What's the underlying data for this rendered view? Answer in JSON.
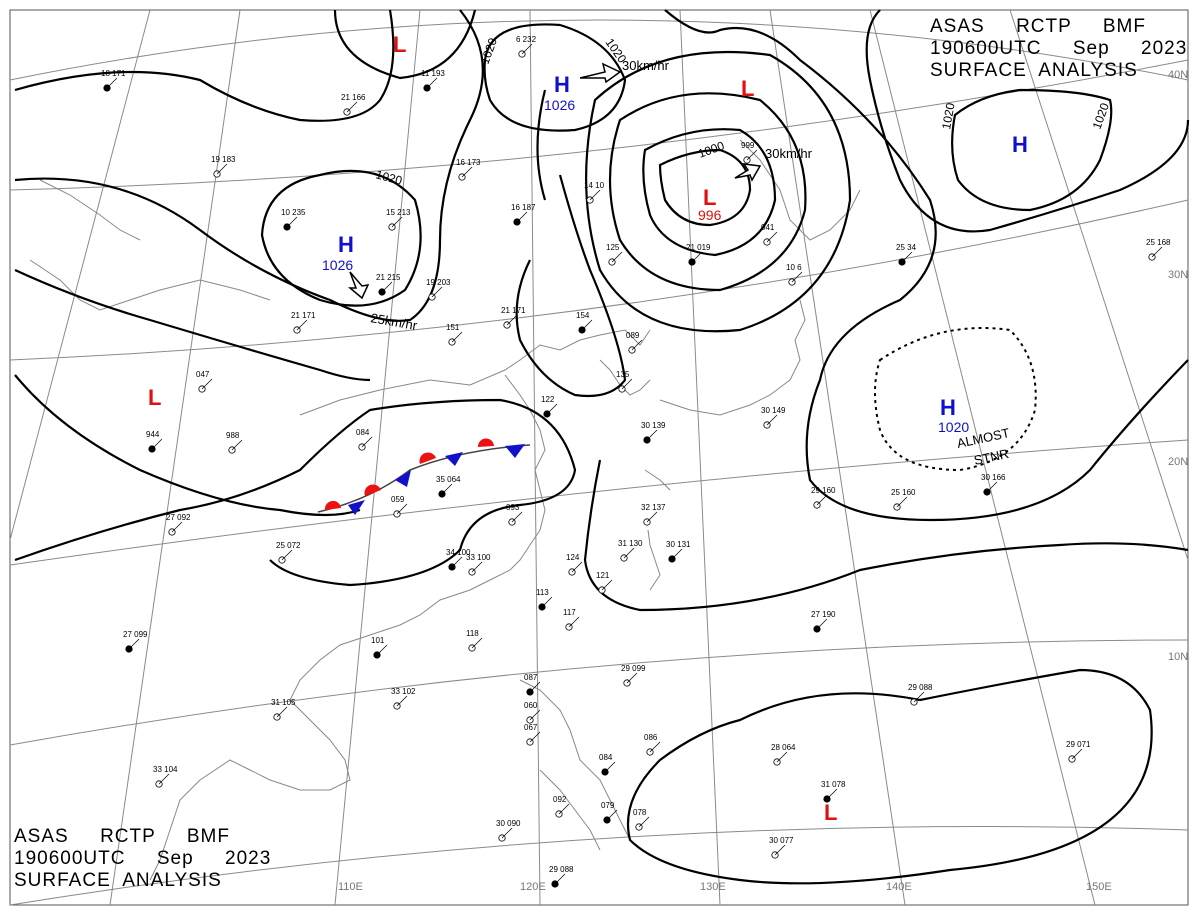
{
  "header_top": {
    "line1": "ASAS     RCTP     BMF",
    "line2": "190600UTC     Sep     2023",
    "line3": "SURFACE  ANALYSIS"
  },
  "header_bottom": {
    "line1": "ASAS     RCTP     BMF",
    "line2": "190600UTC     Sep     2023",
    "line3": "SURFACE  ANALYSIS"
  },
  "colors": {
    "high": "#1010cc",
    "low": "#dd1111",
    "warm_front": "#ee1111",
    "cold_front": "#1111cc",
    "isobar": "#000000",
    "coast": "#888888",
    "grid": "#8a8a8a"
  },
  "lat_labels": [
    "40N",
    "30N",
    "20N",
    "10N"
  ],
  "lon_labels": [
    "110E",
    "120E",
    "130E",
    "140E",
    "150E"
  ],
  "isobar_labels": [
    "1020",
    "1020",
    "1020",
    "1000",
    "1020",
    "1020"
  ],
  "pressure_systems": [
    {
      "type": "H",
      "value": "1026"
    },
    {
      "type": "H",
      "value": "1026"
    },
    {
      "type": "H",
      "value": ""
    },
    {
      "type": "H",
      "value": "1020"
    },
    {
      "type": "L",
      "value": "996"
    },
    {
      "type": "L",
      "value": ""
    },
    {
      "type": "L",
      "value": ""
    },
    {
      "type": "L",
      "value": ""
    },
    {
      "type": "L",
      "value": ""
    }
  ],
  "motion_vectors": [
    "30km/hr",
    "30km/hr",
    "25km/hr"
  ],
  "annotation": {
    "line1": "ALMOST",
    "line2": "STNR"
  },
  "stations": [
    "18 171",
    "21 166",
    "19 183",
    "10 235",
    "15 213",
    "21 171",
    "11 193",
    "16 173",
    "6 232",
    "16 187",
    "14 10",
    "999",
    "21 019",
    "041",
    "25 168",
    "25 34",
    "10 6",
    "19 203",
    "21 215",
    "151",
    "21 171",
    "154",
    "089",
    "135",
    "122",
    "084",
    "988",
    "944",
    "047",
    "33 100",
    "35 064",
    "059",
    "093",
    "30 139",
    "30 149",
    "29 160",
    "30 166",
    "27 092",
    "25 072",
    "34 100",
    "32 137",
    "31 130",
    "30 131",
    "124",
    "121",
    "113",
    "117",
    "118",
    "101",
    "33 102",
    "31 105",
    "27 099",
    "33 104",
    "29 099",
    "27 190",
    "29 088",
    "29 071",
    "087",
    "060",
    "067",
    "084",
    "086",
    "28 064",
    "31 078",
    "30 077",
    "092",
    "079",
    "078",
    "30 090",
    "29 088",
    "125",
    "25 160"
  ]
}
